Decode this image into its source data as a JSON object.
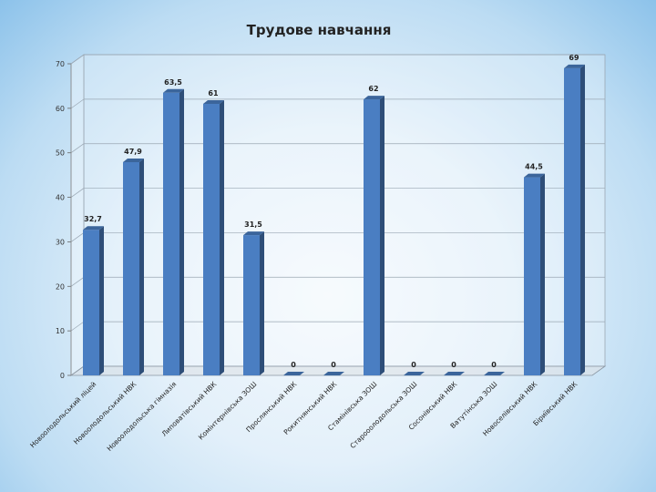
{
  "chart_data": {
    "type": "bar",
    "title": "Трудове навчання",
    "xlabel": "",
    "ylabel": "",
    "ylim": [
      0,
      70
    ],
    "yticks": [
      0,
      10,
      20,
      30,
      40,
      50,
      60,
      70
    ],
    "grid": true,
    "legend": "none",
    "bar_color": "#4a7ec2",
    "categories": [
      "Новоолодольський ліцей",
      "Новоолодольський НВК",
      "Новоолодольська гімназія",
      "Липоватівський НВК",
      "Комінтернівська ЗОШ",
      "Прослянський НВК",
      "Рокитнянський НВК",
      "Стамінівська ЗОШ",
      "Старооолодольська ЗОШ",
      "Сосонівський НВК",
      "Ватутінська ЗОШ",
      "Новоселівський НВК",
      "Біриївський НВК"
    ],
    "values": [
      32.7,
      47.9,
      63.5,
      61,
      31.5,
      0,
      0,
      62,
      0,
      0,
      0,
      44.5,
      69
    ],
    "value_labels": [
      "32,7",
      "47,9",
      "63,5",
      "61",
      "31,5",
      "0",
      "0",
      "62",
      "0",
      "0",
      "0",
      "44,5",
      "69"
    ]
  }
}
